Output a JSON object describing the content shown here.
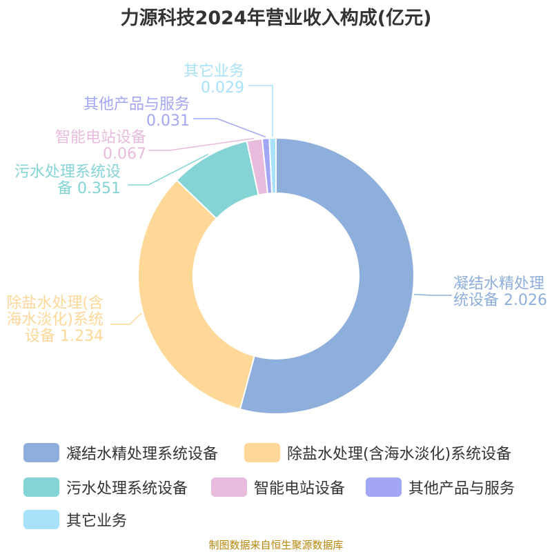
{
  "chart_data": {
    "type": "pie",
    "title": "力源科技2024年营业收入构成(亿元)",
    "categories": [
      "凝结水精处理系统设备",
      "除盐水处理(含海水淡化)系统设备",
      "污水处理系统设备",
      "智能电站设备",
      "其他产品与服务",
      "其它业务"
    ],
    "values": [
      2.026,
      1.234,
      0.351,
      0.067,
      0.031,
      0.029
    ],
    "value_labels": [
      "2.026",
      "1.234",
      "0.351",
      "0.067",
      "0.031",
      "0.029"
    ],
    "callout_lines": [
      [
        "凝结水精处理",
        "统设备 2.026"
      ],
      [
        "除盐水处理(含",
        "海水淡化)系统",
        "设备 1.234"
      ],
      [
        "污水处理系统设",
        "备 0.351"
      ],
      [
        "智能电站设备",
        "0.067"
      ],
      [
        "其他产品与服务",
        "0.031"
      ],
      [
        "其它业务",
        "0.029"
      ]
    ],
    "colors": [
      "#8eaedb",
      "#ffd797",
      "#84d4d6",
      "#e8bbdc",
      "#a3a5f5",
      "#a8e1fa"
    ],
    "legend_position": "bottom",
    "donut": true
  },
  "source_note": "制图数据来自恒生聚源数据库"
}
